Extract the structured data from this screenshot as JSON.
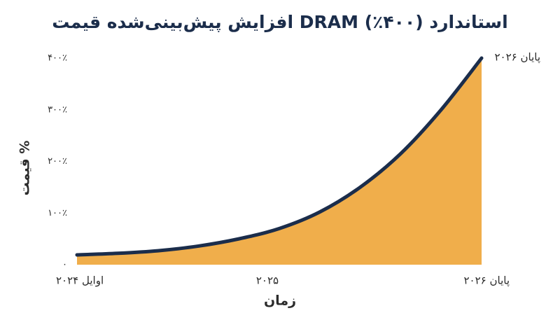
{
  "chart_data": {
    "type": "area",
    "title": "افزایش پیش‌بینی‌شده قیمت DRAM استاندارد (۴۰۰٪)",
    "x_label": "زمان",
    "y_label": "قیمت %",
    "annotation": "پایان ۲۰۲۶",
    "categories": [
      "اوایل ۲۰۲۴",
      null,
      null,
      null,
      null,
      "۲۰۲۵",
      null,
      null,
      null,
      null,
      "پایان ۲۰۲۶"
    ],
    "values": [
      19,
      22,
      27,
      36,
      50,
      70,
      102,
      150,
      215,
      300,
      400
    ],
    "line_color": "#1b2d4b",
    "fill_color": "#f0ae4b",
    "ylim": [
      0,
      400
    ],
    "yticks": [
      {
        "value": 0,
        "label": "۰"
      },
      {
        "value": 100,
        "label": "۱۰۰٪"
      },
      {
        "value": 200,
        "label": "۲۰۰٪"
      },
      {
        "value": 300,
        "label": "۳۰۰٪"
      },
      {
        "value": 400,
        "label": "۴۰۰٪"
      }
    ],
    "grid": false
  }
}
